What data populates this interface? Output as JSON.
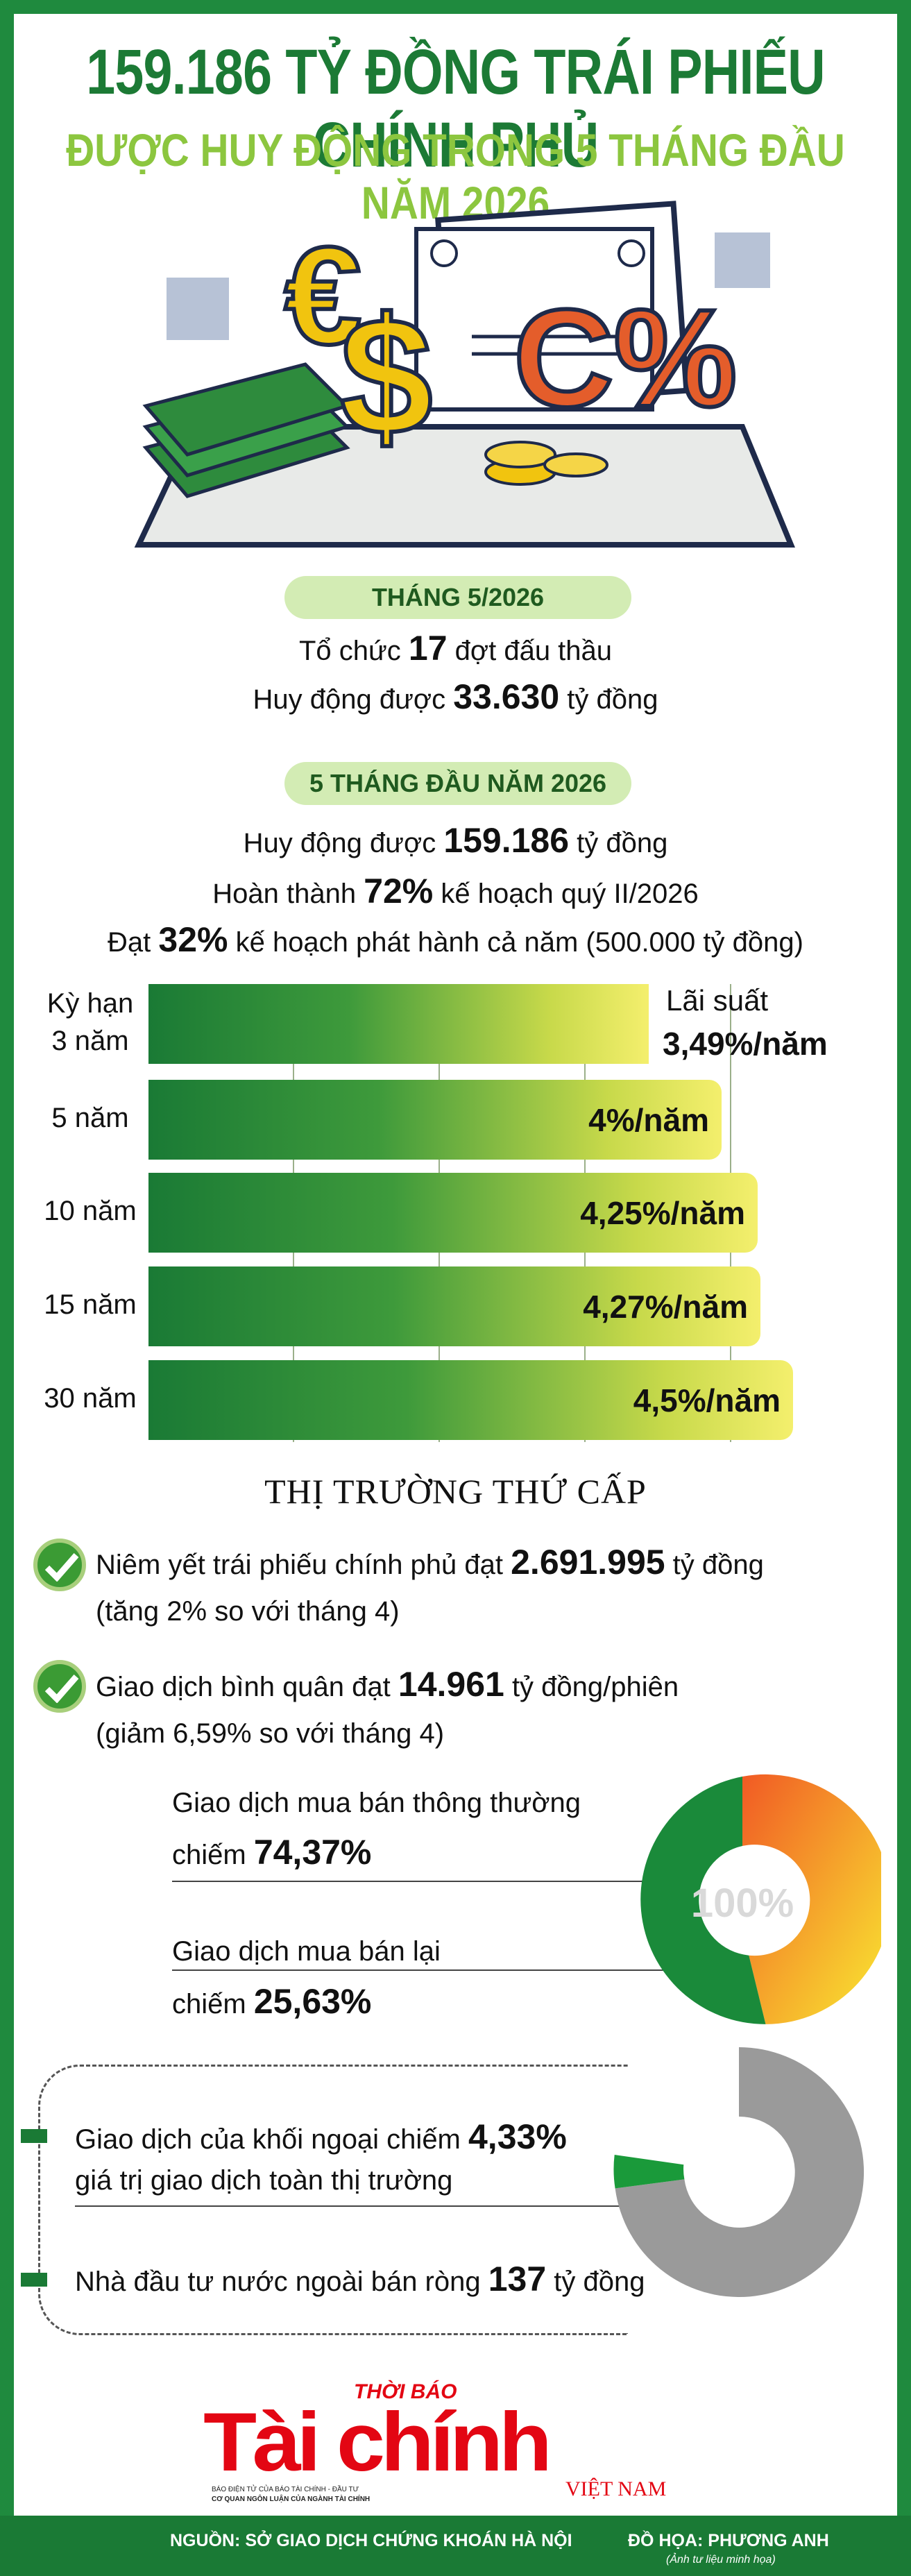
{
  "header": {
    "title": "159.186 TỶ ĐỒNG TRÁI PHIẾU CHÍNH PHỦ",
    "subtitle": "ĐƯỢC HUY ĐỘNG TRONG 5 THÁNG ĐẦU NĂM 2026"
  },
  "month": {
    "label": "THÁNG 5/2026",
    "l1a": "Tổ chức ",
    "l1b": "17",
    "l1c": " đợt đấu thầu",
    "l2a": "Huy động được ",
    "l2b": "33.630",
    "l2c": " tỷ đồng"
  },
  "ytd": {
    "label": "5 THÁNG ĐẦU NĂM 2026",
    "l1a": "Huy động được ",
    "l1b": "159.186",
    "l1c": " tỷ đồng",
    "l2a": "Hoàn thành ",
    "l2b": "72%",
    "l2c": " kế hoạch quý II/2026",
    "l3a": "Đạt ",
    "l3b": "32%",
    "l3c": " kế hoạch phát hành cả năm (500.000 tỷ đồng)"
  },
  "chart_data": {
    "type": "bar",
    "orientation": "horizontal",
    "xlabel": "Kỳ hạn",
    "ylabel": "Lãi suất",
    "categories": [
      "3 năm",
      "5 năm",
      "10 năm",
      "15 năm",
      "30 năm"
    ],
    "values": [
      3.49,
      4,
      4.25,
      4.27,
      4.5
    ],
    "value_labels": [
      "3,49%/năm",
      "4%/năm",
      "4,25%/năm",
      "4,27%/năm",
      "4,5%/năm"
    ]
  },
  "secondary": {
    "title": "THỊ TRƯỜNG THỨ CẤP",
    "i1a": "Niêm yết trái phiếu chính phủ đạt ",
    "i1b": "2.691.995",
    "i1c": " tỷ đồng",
    "i1d": "(tăng 2% so với tháng 4)",
    "i2a": "Giao dịch bình quân đạt ",
    "i2b": "14.961",
    "i2c": " tỷ đồng/phiên",
    "i2d": "(giảm 6,59% so với tháng 4)",
    "p1a": "Giao dịch mua bán thông thường",
    "p1b": "chiếm ",
    "p1c": "74,37%",
    "p2a": "Giao dịch mua bán lại",
    "p2b": "chiếm ",
    "p2c": "25,63%",
    "donut_center": "100%"
  },
  "foreign": {
    "f1a": "Giao dịch của khối ngoại chiếm ",
    "f1b": "4,33%",
    "f1c": "giá trị giao dịch toàn thị trường",
    "f2a": "Nhà đầu tư nước ngoài bán ròng ",
    "f2b": "137",
    "f2c": " tỷ đồng"
  },
  "logo": {
    "top": "THỜI BÁO",
    "main": "Tài chính",
    "sub": "VIỆT NAM",
    "small1": "BÁO ĐIỆN TỬ CỦA BÁO TÀI CHÍNH - ĐẦU TƯ",
    "small2": "CƠ QUAN NGÔN LUẬN CỦA NGÀNH TÀI CHÍNH"
  },
  "footer": {
    "source": "NGUỒN: SỞ GIAO DỊCH CHỨNG KHOÁN HÀ NỘI",
    "design": "ĐỒ HỌA: PHƯƠNG ANH",
    "note": "(Ảnh tư liệu minh họa)"
  },
  "colors": {
    "green": "#1a7a35",
    "lightgreen": "#8cc63f",
    "orange": "#f15a24",
    "yellow": "#f9ed32",
    "grey": "#9a9a9a"
  }
}
